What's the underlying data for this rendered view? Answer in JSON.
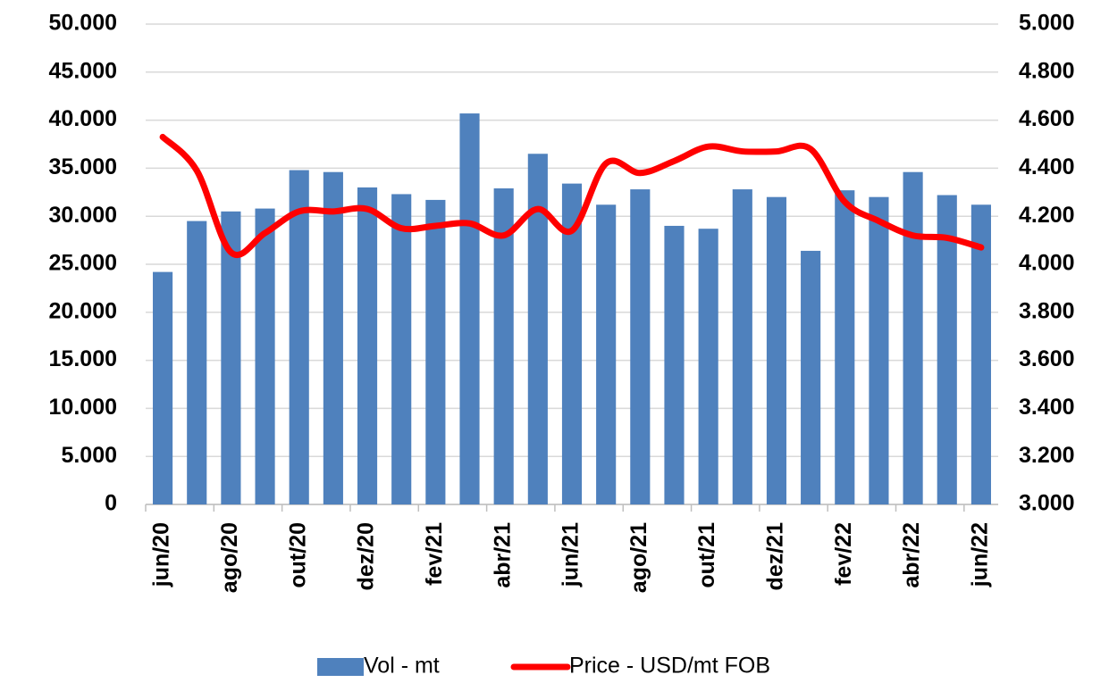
{
  "chart_data": {
    "type": "bar_line",
    "categories": [
      "jun/20",
      null,
      "ago/20",
      null,
      "out/20",
      null,
      "dez/20",
      null,
      "fev/21",
      null,
      "abr/21",
      null,
      "jun/21",
      null,
      "ago/21",
      null,
      "out/21",
      null,
      "dez/21",
      null,
      "fev/22",
      null,
      "abr/22",
      null,
      "jun/22"
    ],
    "series": [
      {
        "name": "Vol - mt",
        "color": "#4f81bd",
        "type": "bar",
        "axis": "y",
        "values": [
          24200,
          29500,
          30500,
          30800,
          34800,
          34600,
          33000,
          32300,
          31700,
          40700,
          32900,
          36500,
          33400,
          31200,
          32800,
          29000,
          28700,
          32800,
          32000,
          26400,
          32700,
          32000,
          34600,
          32200,
          31200
        ]
      },
      {
        "name": "Price - USD/mt FOB",
        "color": "#ff0000",
        "type": "line",
        "axis": "y2",
        "values": [
          4530,
          4390,
          4050,
          4130,
          4220,
          4220,
          4230,
          4150,
          4160,
          4170,
          4120,
          4230,
          4140,
          4420,
          4380,
          4430,
          4490,
          4470,
          4470,
          4480,
          4260,
          4180,
          4120,
          4110,
          4070
        ]
      }
    ],
    "ylim": [
      0,
      50000
    ],
    "yticks": [
      0,
      {
        "value": 5000,
        "label": "5.000"
      },
      {
        "value": 10000,
        "label": "10.000"
      },
      {
        "value": 15000,
        "label": "15.000"
      },
      {
        "value": 20000,
        "label": "20.000"
      },
      {
        "value": 25000,
        "label": "25.000"
      },
      {
        "value": 30000,
        "label": "30.000"
      },
      {
        "value": 35000,
        "label": "35.000"
      },
      {
        "value": 40000,
        "label": "40.000"
      },
      {
        "value": 45000,
        "label": "45.000"
      },
      {
        "value": 50000,
        "label": "50.000"
      }
    ],
    "y2lim": [
      3000,
      5000
    ],
    "y2ticks": [
      {
        "value": 3000,
        "label": "3.000"
      },
      {
        "value": 3200,
        "label": "3.200"
      },
      {
        "value": 3400,
        "label": "3.400"
      },
      {
        "value": 3600,
        "label": "3.600"
      },
      {
        "value": 3800,
        "label": "3.800"
      },
      {
        "value": 4000,
        "label": "4.000"
      },
      {
        "value": 4200,
        "label": "4.200"
      },
      {
        "value": 4400,
        "label": "4.400"
      },
      {
        "value": 4600,
        "label": "4.600"
      },
      {
        "value": 4800,
        "label": "4.800"
      },
      {
        "value": 5000,
        "label": "5.000"
      }
    ],
    "grid": true,
    "legend": "bottom"
  }
}
